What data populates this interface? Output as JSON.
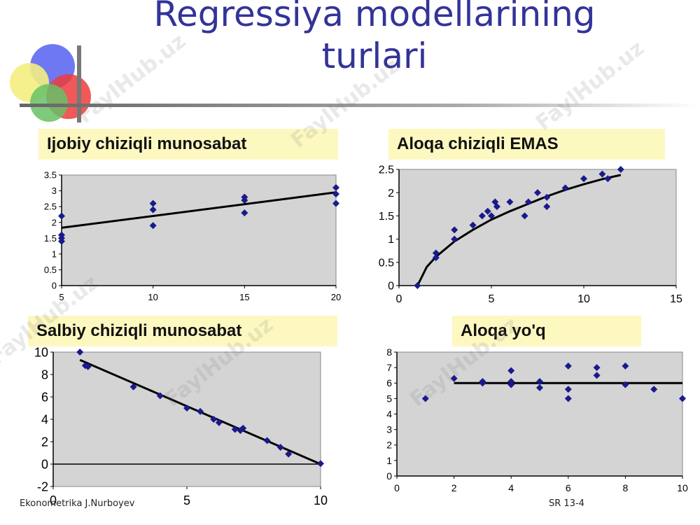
{
  "slide": {
    "title_line1": "Regressiya modellarining",
    "title_line2": "turlari",
    "footer_left": "Ekonometrika J.Nurboyev",
    "footer_right": "SR 13-4",
    "watermark": "FaylHub.uz"
  },
  "colors": {
    "title": "#333399",
    "caption_bg": "#fdf8c0",
    "plot_bg": "#d4d4d4",
    "marker": "#1a1a8c",
    "line": "#000000"
  },
  "chart_data": [
    {
      "type": "scatter",
      "title": "Ijobiy chiziqli munosabat",
      "xlim": [
        5,
        20
      ],
      "ylim": [
        0,
        3.5
      ],
      "xticks": [
        5,
        10,
        15,
        20
      ],
      "yticks": [
        0,
        0.5,
        1,
        1.5,
        2,
        2.5,
        3,
        3.5
      ],
      "points": [
        [
          5,
          2.2
        ],
        [
          5,
          1.6
        ],
        [
          5,
          1.5
        ],
        [
          5,
          1.4
        ],
        [
          10,
          2.6
        ],
        [
          10,
          2.4
        ],
        [
          10,
          1.9
        ],
        [
          15,
          2.8
        ],
        [
          15,
          2.7
        ],
        [
          15,
          2.3
        ],
        [
          20,
          3.1
        ],
        [
          20,
          2.9
        ],
        [
          20,
          2.6
        ]
      ],
      "trend": {
        "kind": "linear",
        "points": [
          [
            5,
            1.83
          ],
          [
            20,
            2.95
          ]
        ]
      }
    },
    {
      "type": "scatter",
      "title": "Aloqa chiziqli EMAS",
      "xlim": [
        0,
        15
      ],
      "ylim": [
        0,
        2.5
      ],
      "xticks": [
        0,
        5,
        10,
        15
      ],
      "yticks": [
        0,
        0.5,
        1,
        1.5,
        2,
        2.5
      ],
      "points": [
        [
          1,
          0
        ],
        [
          2,
          0.6
        ],
        [
          2,
          0.7
        ],
        [
          3,
          1.0
        ],
        [
          3,
          1.2
        ],
        [
          4,
          1.3
        ],
        [
          4.5,
          1.5
        ],
        [
          4.8,
          1.6
        ],
        [
          5,
          1.5
        ],
        [
          5.2,
          1.8
        ],
        [
          5.3,
          1.7
        ],
        [
          6,
          1.8
        ],
        [
          6.8,
          1.5
        ],
        [
          7,
          1.8
        ],
        [
          7.5,
          2.0
        ],
        [
          8,
          1.9
        ],
        [
          8,
          1.7
        ],
        [
          9,
          2.1
        ],
        [
          10,
          2.3
        ],
        [
          11,
          2.4
        ],
        [
          11.3,
          2.3
        ],
        [
          12,
          2.5
        ]
      ],
      "trend": {
        "kind": "curve",
        "points": [
          [
            1,
            0
          ],
          [
            1.5,
            0.4
          ],
          [
            2,
            0.62
          ],
          [
            3,
            0.95
          ],
          [
            4,
            1.2
          ],
          [
            5,
            1.42
          ],
          [
            6,
            1.6
          ],
          [
            7,
            1.76
          ],
          [
            8,
            1.92
          ],
          [
            9,
            2.06
          ],
          [
            10,
            2.18
          ],
          [
            11,
            2.29
          ],
          [
            12,
            2.38
          ]
        ]
      }
    },
    {
      "type": "scatter",
      "title": "Salbiy chiziqli munosabat",
      "xlim": [
        0,
        10
      ],
      "ylim": [
        -2,
        10
      ],
      "xticks": [
        0,
        5,
        10
      ],
      "yticks": [
        -2,
        0,
        2,
        4,
        6,
        8,
        10
      ],
      "points": [
        [
          1,
          10
        ],
        [
          1.2,
          8.8
        ],
        [
          1.3,
          8.7
        ],
        [
          3,
          6.9
        ],
        [
          4,
          6.1
        ],
        [
          5,
          5.0
        ],
        [
          5.5,
          4.7
        ],
        [
          6,
          4.0
        ],
        [
          6.2,
          3.7
        ],
        [
          6.8,
          3.1
        ],
        [
          7,
          3.0
        ],
        [
          7.1,
          3.2
        ],
        [
          8,
          2.1
        ],
        [
          8.5,
          1.5
        ],
        [
          8.8,
          0.9
        ],
        [
          10,
          0.05
        ]
      ],
      "trend": {
        "kind": "linear",
        "points": [
          [
            1,
            9.3
          ],
          [
            10,
            0
          ]
        ]
      }
    },
    {
      "type": "scatter",
      "title": "Aloqa yo'q",
      "xlim": [
        0,
        10
      ],
      "ylim": [
        0,
        8
      ],
      "xticks": [
        0,
        2,
        4,
        6,
        8,
        10
      ],
      "yticks": [
        0,
        1,
        2,
        3,
        4,
        5,
        6,
        7,
        8
      ],
      "points": [
        [
          1,
          5.0
        ],
        [
          2,
          6.3
        ],
        [
          3,
          6.0
        ],
        [
          3,
          6.1
        ],
        [
          4,
          6.8
        ],
        [
          4,
          6.1
        ],
        [
          4,
          5.9
        ],
        [
          5,
          6.1
        ],
        [
          5,
          5.7
        ],
        [
          6,
          7.1
        ],
        [
          6,
          5.6
        ],
        [
          6,
          5.0
        ],
        [
          7,
          7.0
        ],
        [
          7,
          6.5
        ],
        [
          8,
          7.1
        ],
        [
          8,
          5.9
        ],
        [
          9,
          5.6
        ],
        [
          10,
          5.0
        ]
      ],
      "trend": {
        "kind": "linear",
        "points": [
          [
            2,
            6.0
          ],
          [
            10,
            6.0
          ]
        ]
      }
    }
  ]
}
